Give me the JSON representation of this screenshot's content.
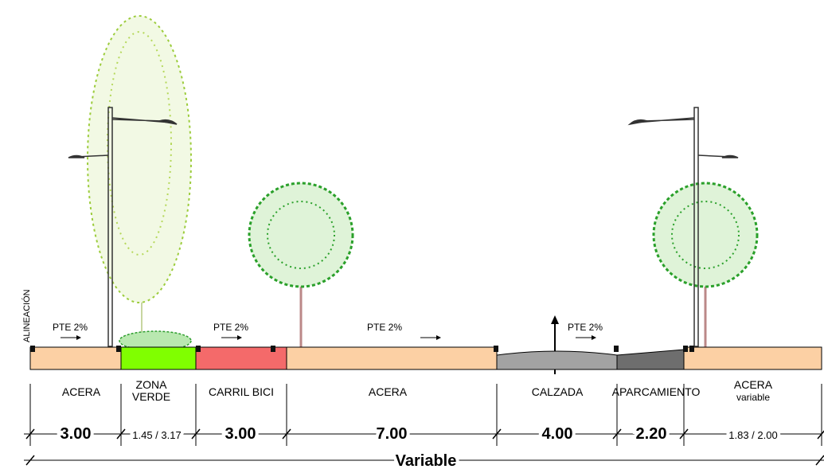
{
  "alignment_label": "ALINEACIÓN",
  "segments": [
    {
      "label": [
        "ACERA"
      ],
      "dimension": "3.00",
      "slope": "PTE 2%"
    },
    {
      "label": [
        "ZONA",
        "VERDE"
      ],
      "dimension": "1.45 / 3.17"
    },
    {
      "label": [
        "CARRIL BICI"
      ],
      "dimension": "3.00",
      "slope": "PTE 2%"
    },
    {
      "label": [
        "ACERA"
      ],
      "dimension": "7.00",
      "slope": "PTE 2%"
    },
    {
      "label": [
        "CALZADA"
      ],
      "dimension": "4.00",
      "slope": "PTE 2%"
    },
    {
      "label": [
        "APARCAMIENTO"
      ],
      "dimension": "2.20"
    },
    {
      "label": [
        "ACERA",
        "variable"
      ],
      "dimension": "1.83 / 2.00"
    }
  ],
  "total_dimension": "Variable"
}
